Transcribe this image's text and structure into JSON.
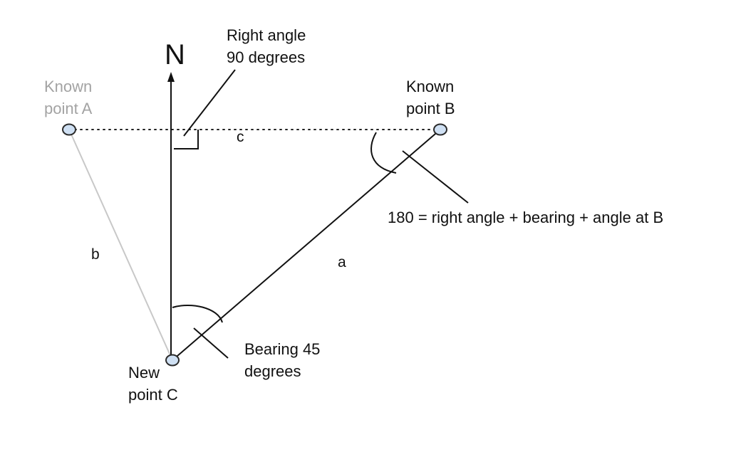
{
  "diagram": {
    "north_label": "N",
    "points": {
      "a": {
        "line1": "Known",
        "line2": "point A"
      },
      "b": {
        "line1": "Known",
        "line2": "point B"
      },
      "c": {
        "line1": "New",
        "line2": "point C"
      }
    },
    "sides": {
      "a": "a",
      "b": "b",
      "c": "c"
    },
    "annotations": {
      "right_angle": {
        "line1": "Right angle",
        "line2": "90 degrees"
      },
      "bearing": {
        "line1": "Bearing 45",
        "line2": "degrees"
      },
      "sum": "180 = right angle + bearing + angle at B"
    },
    "colors": {
      "line": "#111111",
      "faint_line": "#c8c8c8",
      "faint_text": "#a3a3a3",
      "point_fill": "#cfe0f3",
      "point_stroke": "#2b2b2b"
    }
  }
}
